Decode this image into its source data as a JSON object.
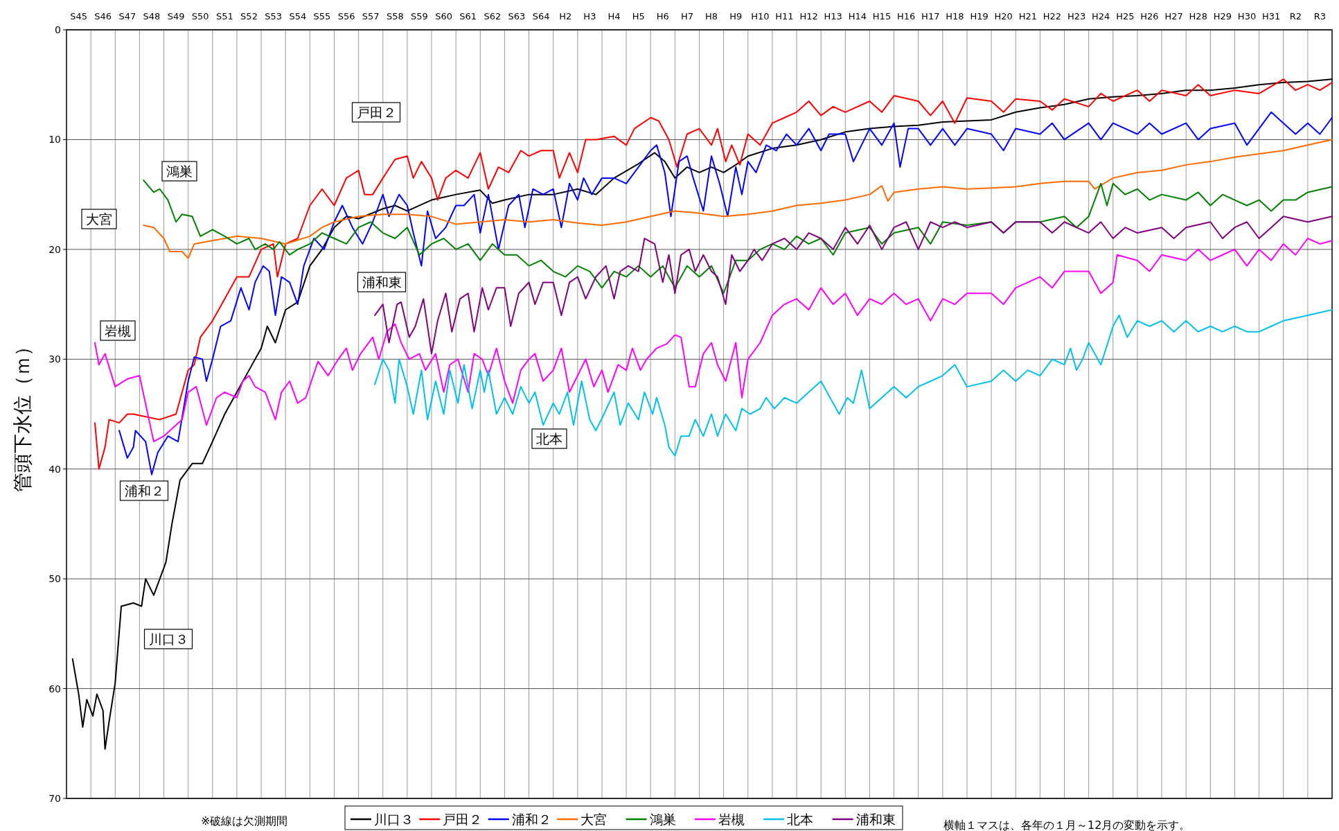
{
  "chart_data": {
    "type": "line",
    "ylabel": "管頭下水位（ｍ）",
    "xlim": [
      "1970-01",
      "2022-01"
    ],
    "ylim": [
      70,
      0
    ],
    "yticks": [
      0,
      10,
      20,
      30,
      40,
      50,
      60,
      70
    ],
    "xticks": [
      {
        "value": "1970-07",
        "label": "S45"
      },
      {
        "value": "1971-07",
        "label": "S46"
      },
      {
        "value": "1972-07",
        "label": "S47"
      },
      {
        "value": "1973-07",
        "label": "S48"
      },
      {
        "value": "1974-07",
        "label": "S49"
      },
      {
        "value": "1975-07",
        "label": "S50"
      },
      {
        "value": "1976-07",
        "label": "S51"
      },
      {
        "value": "1977-07",
        "label": "S52"
      },
      {
        "value": "1978-07",
        "label": "S53"
      },
      {
        "value": "1979-07",
        "label": "S54"
      },
      {
        "value": "1980-07",
        "label": "S55"
      },
      {
        "value": "1981-07",
        "label": "S56"
      },
      {
        "value": "1982-07",
        "label": "S57"
      },
      {
        "value": "1983-07",
        "label": "S58"
      },
      {
        "value": "1984-07",
        "label": "S59"
      },
      {
        "value": "1985-07",
        "label": "S60"
      },
      {
        "value": "1986-07",
        "label": "S61"
      },
      {
        "value": "1987-07",
        "label": "S62"
      },
      {
        "value": "1988-07",
        "label": "S63"
      },
      {
        "value": "1989-07",
        "label": "S64"
      },
      {
        "value": "1990-07",
        "label": "H2"
      },
      {
        "value": "1991-07",
        "label": "H3"
      },
      {
        "value": "1992-07",
        "label": "H4"
      },
      {
        "value": "1993-07",
        "label": "H5"
      },
      {
        "value": "1994-07",
        "label": "H6"
      },
      {
        "value": "1995-07",
        "label": "H7"
      },
      {
        "value": "1996-07",
        "label": "H8"
      },
      {
        "value": "1997-07",
        "label": "H9"
      },
      {
        "value": "1998-07",
        "label": "H10"
      },
      {
        "value": "1999-07",
        "label": "H11"
      },
      {
        "value": "2000-07",
        "label": "H12"
      },
      {
        "value": "2001-07",
        "label": "H13"
      },
      {
        "value": "2002-07",
        "label": "H14"
      },
      {
        "value": "2003-07",
        "label": "H15"
      },
      {
        "value": "2004-07",
        "label": "H16"
      },
      {
        "value": "2005-07",
        "label": "H17"
      },
      {
        "value": "2006-07",
        "label": "H18"
      },
      {
        "value": "2007-07",
        "label": "H19"
      },
      {
        "value": "2008-07",
        "label": "H20"
      },
      {
        "value": "2009-07",
        "label": "H21"
      },
      {
        "value": "2010-07",
        "label": "H22"
      },
      {
        "value": "2011-07",
        "label": "H23"
      },
      {
        "value": "2012-07",
        "label": "H24"
      },
      {
        "value": "2013-07",
        "label": "H25"
      },
      {
        "value": "2014-07",
        "label": "H26"
      },
      {
        "value": "2015-07",
        "label": "H27"
      },
      {
        "value": "2016-07",
        "label": "H28"
      },
      {
        "value": "2017-07",
        "label": "H29"
      },
      {
        "value": "2018-07",
        "label": "H30"
      },
      {
        "value": "2019-07",
        "label": "H31"
      },
      {
        "value": "2020-07",
        "label": "R2"
      },
      {
        "value": "2021-07",
        "label": "R3"
      }
    ],
    "grid": true,
    "legend": "bottom",
    "marker": "none",
    "line_style": "solid",
    "series": [
      {
        "name": "川口３",
        "color": "#000000",
        "x": [
          "1970-04",
          "1970-07",
          "1970-09",
          "1970-11",
          "1971-02",
          "1971-04",
          "1971-07",
          "1971-08",
          "1971-10",
          "1972-01",
          "1972-04",
          "1972-10",
          "1973-02",
          "1973-04",
          "1973-08",
          "1973-11",
          "1974-02",
          "1974-05",
          "1974-09",
          "1975-03",
          "1975-08",
          "1976-01",
          "1976-07",
          "1977-01",
          "1977-07",
          "1978-01",
          "1978-04",
          "1978-08",
          "1979-01",
          "1979-07",
          "1980-01",
          "1980-07",
          "1981-01",
          "1981-07",
          "1982-01",
          "1983-01",
          "1983-07",
          "1984-01",
          "1985-01",
          "1986-01",
          "1987-01",
          "1987-07",
          "1988-01",
          "1989-01",
          "1990-01",
          "1991-01",
          "1991-10",
          "1992-07",
          "1993-07",
          "1994-03",
          "1994-08",
          "1995-01",
          "1995-07",
          "1996-01",
          "1996-07",
          "1997-01",
          "1997-07",
          "1998-01",
          "1999-01",
          "2000-01",
          "2001-01",
          "2002-01",
          "2003-01",
          "2004-01",
          "2005-01",
          "2006-01",
          "2007-01",
          "2008-01",
          "2009-01",
          "2010-01",
          "2011-01",
          "2012-01",
          "2013-01",
          "2014-01",
          "2015-01",
          "2016-01",
          "2017-01",
          "2018-01",
          "2019-01",
          "2020-01",
          "2021-01",
          "2022-01"
        ],
        "values": [
          57.3,
          60.5,
          63.5,
          61,
          62.5,
          60.5,
          62,
          65.5,
          63,
          59.5,
          52.5,
          52.2,
          52.5,
          50,
          51.5,
          50,
          48.5,
          45,
          41,
          39.5,
          39.5,
          37.5,
          35,
          33,
          31,
          29,
          27,
          28.5,
          25.5,
          24.8,
          21.5,
          20,
          18,
          17,
          17.2,
          16.3,
          16,
          16.5,
          15.5,
          15,
          14.6,
          15.8,
          15.5,
          15,
          15,
          14.5,
          15,
          13.5,
          12.2,
          11.2,
          12,
          13.5,
          12.5,
          13,
          12.5,
          13,
          12.3,
          11.5,
          10.8,
          10.5,
          10,
          9.3,
          9,
          8.8,
          8.7,
          8.4,
          8.3,
          8.2,
          7.5,
          7.1,
          6.8,
          6.3,
          6.1,
          6,
          5.8,
          5.5,
          5.5,
          5.3,
          5,
          4.8,
          4.7,
          4.5
        ]
      },
      {
        "name": "戸田２",
        "color": "#ff0000",
        "x": [
          "1971-03",
          "1971-05",
          "1971-08",
          "1971-10",
          "1972-03",
          "1972-07",
          "1972-10",
          "1973-11",
          "1974-07",
          "1975-01",
          "1975-04",
          "1975-07",
          "1976-01",
          "1976-07",
          "1977-01",
          "1977-07",
          "1978-01",
          "1978-07",
          "1978-09",
          "1979-01",
          "1979-07",
          "1980-01",
          "1980-07",
          "1981-01",
          "1981-07",
          "1982-01",
          "1982-04",
          "1982-08",
          "1983-01",
          "1983-07",
          "1984-01",
          "1984-04",
          "1984-08",
          "1985-01",
          "1985-04",
          "1985-08",
          "1986-01",
          "1986-07",
          "1987-01",
          "1987-05",
          "1987-10",
          "1988-03",
          "1988-09",
          "1989-01",
          "1989-07",
          "1990-01",
          "1990-04",
          "1990-09",
          "1991-01",
          "1991-05",
          "1991-10",
          "1992-07",
          "1993-01",
          "1993-05",
          "1994-01",
          "1994-05",
          "1994-10",
          "1995-02",
          "1995-07",
          "1996-01",
          "1996-07",
          "1996-10",
          "1997-02",
          "1997-05",
          "1997-09",
          "1998-01",
          "1998-07",
          "1999-01",
          "1999-07",
          "2000-01",
          "2000-07",
          "2001-01",
          "2001-07",
          "2002-01",
          "2003-01",
          "2003-07",
          "2004-01",
          "2005-01",
          "2005-07",
          "2006-01",
          "2006-07",
          "2007-01",
          "2008-01",
          "2008-07",
          "2009-01",
          "2010-01",
          "2010-07",
          "2011-01",
          "2012-01",
          "2012-07",
          "2013-01",
          "2014-01",
          "2014-07",
          "2015-01",
          "2016-01",
          "2016-07",
          "2017-01",
          "2018-01",
          "2019-01",
          "2020-01",
          "2020-07",
          "2021-01",
          "2021-07",
          "2022-01"
        ],
        "values": [
          35.8,
          40,
          38,
          35.5,
          35.8,
          35,
          35,
          35.5,
          35,
          31,
          30.5,
          28,
          26.5,
          24.5,
          22.5,
          22.5,
          20,
          19.5,
          22.5,
          19.5,
          19,
          16,
          14.5,
          16,
          13.5,
          12.8,
          15,
          15,
          13.5,
          11.8,
          11.5,
          13.5,
          12,
          13.5,
          15.5,
          13.5,
          12.8,
          13.5,
          11.2,
          14.5,
          12.5,
          13,
          11,
          11.5,
          11,
          11,
          13.5,
          11.2,
          13,
          10,
          10,
          9.7,
          10.5,
          9,
          8,
          8.3,
          10,
          12.5,
          9.5,
          9,
          10.5,
          9,
          12,
          10.5,
          12.3,
          9.5,
          10.5,
          8.5,
          8,
          7.5,
          6.5,
          7.8,
          7,
          7.5,
          6.5,
          7.5,
          6,
          6.5,
          7.8,
          6.5,
          8.5,
          6.2,
          6.5,
          7.5,
          6.3,
          6.5,
          7.3,
          6.3,
          7,
          5.8,
          6.5,
          5.5,
          6.5,
          5.5,
          6,
          5,
          6,
          5.5,
          5.8,
          4.5,
          5.5,
          5,
          5.5,
          4.8
        ]
      },
      {
        "name": "浦和２",
        "color": "#0000ff",
        "x": [
          "1972-03",
          "1972-07",
          "1972-10",
          "1972-11",
          "1973-04",
          "1973-07",
          "1973-10",
          "1974-03",
          "1974-08",
          "1975-01",
          "1975-04",
          "1975-08",
          "1975-10",
          "1976-01",
          "1976-05",
          "1976-10",
          "1977-03",
          "1977-07",
          "1977-10",
          "1978-02",
          "1978-05",
          "1978-08",
          "1978-11",
          "1979-03",
          "1979-07",
          "1979-10",
          "1980-03",
          "1980-08",
          "1981-01",
          "1981-05",
          "1981-10",
          "1982-03",
          "1982-08",
          "1983-01",
          "1983-04",
          "1983-09",
          "1984-01",
          "1984-04",
          "1984-08",
          "1984-11",
          "1985-03",
          "1985-08",
          "1986-01",
          "1986-05",
          "1986-10",
          "1987-01",
          "1987-05",
          "1987-10",
          "1988-03",
          "1988-08",
          "1988-11",
          "1989-03",
          "1989-08",
          "1990-01",
          "1990-05",
          "1990-09",
          "1991-01",
          "1991-04",
          "1991-08",
          "1992-01",
          "1992-07",
          "1993-01",
          "1993-07",
          "1994-01",
          "1994-04",
          "1994-08",
          "1994-11",
          "1995-03",
          "1995-07",
          "1995-10",
          "1996-03",
          "1996-07",
          "1996-11",
          "1997-03",
          "1997-07",
          "1997-10",
          "1998-01",
          "1998-05",
          "1998-10",
          "1999-03",
          "1999-08",
          "2000-01",
          "2000-07",
          "2001-01",
          "2001-05",
          "2002-01",
          "2002-05",
          "2003-01",
          "2003-07",
          "2004-01",
          "2004-04",
          "2004-08",
          "2005-01",
          "2005-07",
          "2006-01",
          "2006-07",
          "2007-01",
          "2008-01",
          "2008-07",
          "2009-01",
          "2010-01",
          "2010-07",
          "2011-01",
          "2012-01",
          "2012-07",
          "2013-01",
          "2014-01",
          "2014-07",
          "2015-01",
          "2016-01",
          "2016-07",
          "2017-01",
          "2018-01",
          "2018-07",
          "2019-01",
          "2019-07",
          "2020-01",
          "2020-07",
          "2021-01",
          "2021-07",
          "2022-01"
        ],
        "values": [
          36.5,
          39,
          38,
          36.5,
          37.5,
          40.5,
          38.5,
          37,
          37.5,
          32,
          29.8,
          30,
          32,
          30,
          27,
          26.5,
          23.5,
          25.5,
          23,
          21.5,
          22,
          26,
          22.5,
          23,
          25,
          21.5,
          19,
          20,
          17.5,
          16,
          18,
          19.5,
          17.5,
          15,
          17,
          15,
          16,
          18.5,
          21.5,
          16.5,
          19,
          18,
          16,
          16,
          15,
          18.5,
          15,
          20,
          16,
          15,
          18,
          14.5,
          15,
          14.5,
          18,
          14,
          15.5,
          13.5,
          15,
          13.5,
          13.5,
          14,
          12.5,
          11,
          10.5,
          13,
          17,
          12,
          11.5,
          13.5,
          16.5,
          11.5,
          14,
          17,
          12.5,
          15,
          12,
          13,
          10.5,
          11,
          9.5,
          10.5,
          9,
          11,
          9.5,
          9.5,
          12,
          9,
          10.5,
          8.5,
          12.5,
          9,
          9,
          10.5,
          9,
          10.5,
          9,
          9.5,
          11,
          9,
          9.5,
          8.5,
          10,
          8.5,
          10,
          8.5,
          9.5,
          8.5,
          9.5,
          8.5,
          10,
          9,
          8.5,
          10.5,
          9,
          7.5,
          8.5,
          9.5,
          8.5,
          9.5,
          8
        ]
      },
      {
        "name": "大宮",
        "color": "#ff6a00",
        "x": [
          "1973-03",
          "1973-08",
          "1974-01",
          "1974-04",
          "1974-10",
          "1975-01",
          "1975-04",
          "1975-10",
          "1976-07",
          "1977-01",
          "1978-01",
          "1979-01",
          "1980-01",
          "1980-07",
          "1981-01",
          "1982-01",
          "1983-01",
          "1984-01",
          "1985-01",
          "1986-01",
          "1987-01",
          "1988-01",
          "1989-01",
          "1990-01",
          "1991-01",
          "1992-01",
          "1993-01",
          "1994-01",
          "1995-01",
          "1996-01",
          "1997-01",
          "1998-01",
          "1999-01",
          "2000-01",
          "2001-01",
          "2002-01",
          "2003-01",
          "2003-07",
          "2003-10",
          "2004-01",
          "2005-01",
          "2006-01",
          "2007-01",
          "2008-01",
          "2009-01",
          "2010-01",
          "2011-01",
          "2012-01",
          "2012-04",
          "2013-01",
          "2014-01",
          "2015-01",
          "2016-01",
          "2017-01",
          "2018-01",
          "2019-01",
          "2020-01",
          "2021-01",
          "2022-01"
        ],
        "values": [
          17.8,
          18,
          19,
          20.2,
          20.2,
          20.8,
          19.5,
          19.3,
          19,
          18.8,
          19,
          19.5,
          18.8,
          18,
          17.5,
          17,
          16.8,
          16.8,
          17,
          17.7,
          17.5,
          17.3,
          17.5,
          17.3,
          17.6,
          17.8,
          17.5,
          17,
          16.5,
          16.7,
          17,
          16.8,
          16.5,
          16,
          15.8,
          15.5,
          15,
          14.2,
          15.6,
          14.8,
          14.5,
          14.3,
          14.5,
          14.4,
          14.3,
          14,
          13.8,
          13.8,
          14.5,
          13.5,
          13,
          12.8,
          12.3,
          12,
          11.6,
          11.3,
          11,
          10.5,
          10
        ]
      },
      {
        "name": "鴻巣",
        "color": "#008000",
        "x": [
          "1973-03",
          "1973-08",
          "1973-11",
          "1974-03",
          "1974-07",
          "1974-10",
          "1975-03",
          "1975-07",
          "1976-01",
          "1976-07",
          "1977-01",
          "1977-07",
          "1977-10",
          "1978-03",
          "1978-07",
          "1978-10",
          "1979-03",
          "1979-07",
          "1980-01",
          "1980-07",
          "1981-01",
          "1981-07",
          "1982-01",
          "1982-07",
          "1983-01",
          "1983-07",
          "1984-01",
          "1984-07",
          "1985-01",
          "1985-07",
          "1986-01",
          "1986-07",
          "1987-01",
          "1987-07",
          "1988-01",
          "1988-07",
          "1989-01",
          "1989-07",
          "1990-01",
          "1990-07",
          "1991-01",
          "1991-07",
          "1992-01",
          "1992-07",
          "1993-01",
          "1993-07",
          "1994-01",
          "1994-07",
          "1995-01",
          "1995-07",
          "1996-01",
          "1996-07",
          "1997-01",
          "1997-07",
          "1998-01",
          "1998-07",
          "1999-01",
          "1999-07",
          "2000-01",
          "2000-07",
          "2001-01",
          "2001-07",
          "2002-01",
          "2003-01",
          "2003-07",
          "2004-01",
          "2005-01",
          "2005-07",
          "2006-01",
          "2007-01",
          "2008-01",
          "2008-07",
          "2009-01",
          "2010-01",
          "2011-01",
          "2011-07",
          "2012-01",
          "2012-07",
          "2012-10",
          "2013-01",
          "2013-07",
          "2014-01",
          "2014-07",
          "2015-01",
          "2016-01",
          "2016-07",
          "2017-01",
          "2017-07",
          "2018-01",
          "2018-07",
          "2019-01",
          "2019-07",
          "2020-01",
          "2020-07",
          "2021-01",
          "2022-01"
        ],
        "values": [
          13.7,
          14.8,
          14.5,
          15.5,
          17.5,
          16.8,
          17,
          18.8,
          18.2,
          18.8,
          19.5,
          19,
          20,
          19.5,
          20,
          19.3,
          20.5,
          20,
          19.5,
          18.5,
          19,
          19.5,
          18,
          17.5,
          18.5,
          19,
          18,
          20.5,
          19.5,
          19,
          20,
          19.5,
          21,
          19.5,
          20.5,
          20.5,
          21.5,
          21,
          22,
          22.5,
          21.5,
          22,
          23.5,
          22,
          22.5,
          21.5,
          22.5,
          21.5,
          23.5,
          21.5,
          22.5,
          21.5,
          24,
          21,
          21,
          20,
          19.5,
          20,
          18.8,
          19.5,
          19,
          20.5,
          18.5,
          18,
          19.5,
          18.5,
          18,
          19.5,
          17.5,
          17.8,
          17.5,
          18.5,
          17.5,
          17.5,
          17,
          18,
          17,
          14,
          16,
          14,
          15,
          14.5,
          15.5,
          15,
          15.5,
          14.8,
          16,
          15,
          15.5,
          16,
          15.5,
          16.5,
          15.5,
          15.5,
          14.8,
          14.3
        ]
      },
      {
        "name": "岩槻",
        "color": "#ff00ff",
        "x": [
          "1971-03",
          "1971-05",
          "1971-08",
          "1972-01",
          "1972-07",
          "1973-01",
          "1973-08",
          "1974-01",
          "1974-07",
          "1974-10",
          "1975-01",
          "1975-05",
          "1975-10",
          "1976-03",
          "1976-07",
          "1977-01",
          "1977-04",
          "1977-07",
          "1977-10",
          "1978-03",
          "1978-08",
          "1978-11",
          "1979-03",
          "1979-07",
          "1979-11",
          "1980-05",
          "1980-10",
          "1981-03",
          "1981-07",
          "1981-10",
          "1982-02",
          "1982-08",
          "1982-11",
          "1983-03",
          "1983-07",
          "1983-10",
          "1984-02",
          "1984-07",
          "1984-10",
          "1985-03",
          "1985-07",
          "1985-10",
          "1986-02",
          "1986-07",
          "1986-10",
          "1987-02",
          "1987-05",
          "1987-09",
          "1988-01",
          "1988-05",
          "1988-09",
          "1989-01",
          "1989-04",
          "1989-08",
          "1990-01",
          "1990-05",
          "1990-09",
          "1991-01",
          "1991-05",
          "1991-09",
          "1992-01",
          "1992-04",
          "1992-09",
          "1993-01",
          "1993-04",
          "1993-08",
          "1993-11",
          "1994-04",
          "1994-09",
          "1995-01",
          "1995-04",
          "1995-08",
          "1995-11",
          "1996-03",
          "1996-07",
          "1996-10",
          "1997-02",
          "1997-07",
          "1997-10",
          "1998-01",
          "1998-07",
          "1999-01",
          "1999-07",
          "2000-01",
          "2000-07",
          "2001-01",
          "2001-07",
          "2002-01",
          "2002-07",
          "2003-01",
          "2003-07",
          "2004-01",
          "2004-07",
          "2005-01",
          "2005-07",
          "2006-01",
          "2006-07",
          "2007-01",
          "2008-01",
          "2008-07",
          "2009-01",
          "2010-01",
          "2010-07",
          "2011-01",
          "2012-01",
          "2012-07",
          "2013-01",
          "2013-03",
          "2014-01",
          "2014-07",
          "2015-01",
          "2016-01",
          "2016-07",
          "2017-01",
          "2017-07",
          "2018-01",
          "2018-07",
          "2019-01",
          "2019-07",
          "2020-01",
          "2020-07",
          "2021-01",
          "2021-07",
          "2022-01"
        ],
        "values": [
          28.5,
          30.5,
          29.5,
          32.5,
          31.8,
          31.5,
          37.5,
          37,
          36,
          35.5,
          33,
          32.5,
          36,
          33.5,
          33,
          33.5,
          32,
          31.5,
          32.5,
          33,
          35.5,
          33,
          32,
          34,
          33.5,
          30.2,
          31.5,
          30,
          29,
          31,
          29.5,
          28,
          30,
          27.5,
          26.8,
          28.5,
          30,
          29.5,
          31,
          29.5,
          33,
          30.5,
          30,
          33,
          29.5,
          30,
          31.5,
          29,
          32,
          34,
          31,
          30,
          29.5,
          32,
          31,
          29,
          33,
          31.5,
          30,
          32.5,
          31,
          33,
          30.5,
          31,
          29,
          31,
          30,
          29,
          28.6,
          27.8,
          28,
          32.5,
          32.5,
          29.5,
          28.5,
          30.5,
          32,
          28.5,
          33.5,
          30,
          28.5,
          26,
          25,
          24.5,
          25.5,
          23.5,
          25,
          24,
          26,
          24.5,
          25,
          24,
          25,
          24.5,
          26.5,
          24.5,
          25,
          24,
          24,
          25,
          23.5,
          22.5,
          23.5,
          22,
          22,
          24,
          23,
          20.5,
          21,
          22,
          20.5,
          21,
          20,
          21,
          20.5,
          20,
          21.5,
          20,
          21,
          19.5,
          20.5,
          19,
          19.5,
          19.2
        ]
      },
      {
        "name": "北本",
        "color": "#00c0f0",
        "x": [
          "1982-09",
          "1983-01",
          "1983-04",
          "1983-07",
          "1983-09",
          "1984-01",
          "1984-04",
          "1984-08",
          "1984-11",
          "1985-03",
          "1985-07",
          "1985-10",
          "1986-02",
          "1986-05",
          "1986-09",
          "1987-01",
          "1987-03",
          "1987-05",
          "1987-09",
          "1988-01",
          "1988-05",
          "1988-09",
          "1989-01",
          "1989-04",
          "1989-08",
          "1990-01",
          "1990-04",
          "1990-08",
          "1990-11",
          "1991-03",
          "1991-07",
          "1991-10",
          "1992-02",
          "1992-07",
          "1992-10",
          "1993-02",
          "1993-07",
          "1993-10",
          "1994-02",
          "1994-04",
          "1994-08",
          "1994-10",
          "1995-01",
          "1995-04",
          "1995-08",
          "1995-11",
          "1996-03",
          "1996-07",
          "1996-10",
          "1997-02",
          "1997-07",
          "1997-10",
          "1998-02",
          "1998-07",
          "1998-10",
          "1999-02",
          "1999-07",
          "2000-01",
          "2000-07",
          "2001-01",
          "2001-07",
          "2001-10",
          "2002-02",
          "2002-05",
          "2002-09",
          "2003-01",
          "2003-07",
          "2004-01",
          "2004-07",
          "2005-01",
          "2005-07",
          "2006-01",
          "2006-07",
          "2007-01",
          "2008-01",
          "2008-07",
          "2009-01",
          "2009-07",
          "2010-01",
          "2010-07",
          "2011-01",
          "2011-04",
          "2011-07",
          "2011-10",
          "2012-01",
          "2012-07",
          "2013-01",
          "2013-04",
          "2013-08",
          "2014-01",
          "2014-07",
          "2015-01",
          "2015-07",
          "2016-01",
          "2016-07",
          "2017-01",
          "2017-07",
          "2018-01",
          "2018-07",
          "2019-01",
          "2019-07",
          "2020-01",
          "2021-01",
          "2022-01"
        ],
        "values": [
          32.3,
          30,
          31,
          34,
          30,
          32.5,
          35,
          31,
          35.5,
          32,
          35,
          31,
          34,
          30.5,
          34.5,
          31,
          33,
          31,
          35,
          33.5,
          35,
          32.5,
          34,
          33,
          36,
          34,
          35,
          33,
          36,
          32,
          35.5,
          36.5,
          35,
          33,
          36,
          34,
          35.5,
          33,
          35,
          33.5,
          36,
          38,
          38.8,
          37,
          37,
          35.5,
          37,
          35,
          37,
          35,
          36.5,
          34.5,
          35,
          34.5,
          33.5,
          34.5,
          33.5,
          34,
          33,
          32,
          34,
          35,
          33.5,
          34,
          31,
          34.5,
          33.5,
          32.5,
          33.5,
          32.5,
          32,
          31.5,
          30.5,
          32.5,
          32,
          31,
          32,
          31,
          31.5,
          30,
          30.5,
          29,
          31,
          30,
          28.5,
          30.5,
          27,
          26,
          28,
          26.5,
          27,
          26.5,
          27.5,
          26.5,
          27.5,
          27,
          27.5,
          27,
          27.5,
          27.5,
          27,
          26.5,
          26,
          25.5
        ]
      },
      {
        "name": "浦和東",
        "color": "#800080",
        "x": [
          "1982-09",
          "1983-01",
          "1983-04",
          "1983-08",
          "1983-10",
          "1984-02",
          "1984-05",
          "1984-09",
          "1985-01",
          "1985-04",
          "1985-08",
          "1985-11",
          "1986-03",
          "1986-07",
          "1986-10",
          "1987-02",
          "1987-05",
          "1987-09",
          "1988-01",
          "1988-04",
          "1988-08",
          "1989-01",
          "1989-04",
          "1989-08",
          "1990-01",
          "1990-05",
          "1990-09",
          "1991-01",
          "1991-05",
          "1991-10",
          "1992-03",
          "1992-07",
          "1992-10",
          "1993-02",
          "1993-07",
          "1993-10",
          "1994-03",
          "1994-07",
          "1994-10",
          "1995-01",
          "1995-04",
          "1995-08",
          "1995-11",
          "1996-03",
          "1996-07",
          "1996-10",
          "1997-02",
          "1997-05",
          "1997-09",
          "1998-01",
          "1998-04",
          "1998-08",
          "1999-01",
          "1999-07",
          "2000-01",
          "2000-07",
          "2001-01",
          "2001-07",
          "2002-01",
          "2002-07",
          "2003-01",
          "2003-07",
          "2004-01",
          "2004-07",
          "2005-01",
          "2005-07",
          "2006-01",
          "2006-07",
          "2007-01",
          "2008-01",
          "2008-07",
          "2009-01",
          "2010-01",
          "2010-07",
          "2011-01",
          "2012-01",
          "2012-07",
          "2013-01",
          "2013-07",
          "2014-01",
          "2015-01",
          "2015-07",
          "2016-01",
          "2017-01",
          "2017-07",
          "2018-01",
          "2018-07",
          "2019-01",
          "2019-07",
          "2020-01",
          "2021-01",
          "2022-01"
        ],
        "values": [
          26,
          25,
          28.5,
          25,
          24.8,
          28,
          27,
          24.5,
          29.5,
          26.5,
          24,
          27.5,
          24.5,
          24,
          27.5,
          23.5,
          25.5,
          23.5,
          23.5,
          27,
          24,
          23,
          25,
          23,
          23,
          26,
          23,
          22.5,
          24.5,
          22.5,
          21.5,
          24.5,
          22,
          21.5,
          22,
          19,
          19.5,
          23,
          20.5,
          24,
          20.5,
          20,
          22,
          20.5,
          22,
          22.5,
          25,
          20.5,
          22,
          21,
          20,
          21,
          19.5,
          19,
          20,
          18.5,
          19,
          20,
          18,
          19.5,
          17.8,
          20,
          18,
          17.5,
          20,
          17.5,
          18,
          17.5,
          18,
          17.5,
          18.5,
          17.5,
          17.5,
          18.5,
          17.5,
          18.5,
          17.5,
          19,
          18,
          18.5,
          18,
          19,
          18,
          17.5,
          19,
          18,
          17.5,
          19,
          18,
          17,
          17.5,
          17
        ]
      }
    ],
    "annotations": [
      "川口３",
      "戸田２",
      "浦和２",
      "大宮",
      "鴻巣",
      "岩槻",
      "北本",
      "浦和東",
      "※破線は欠測期間",
      "横軸１マスは、各年の１月～12月の変動を示す。"
    ]
  }
}
